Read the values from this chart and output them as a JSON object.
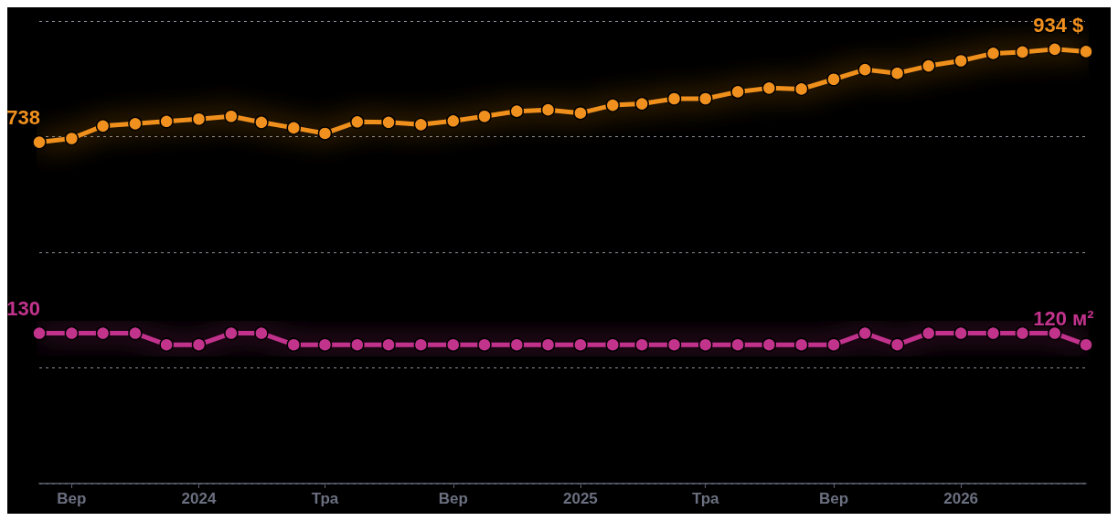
{
  "chart_data": {
    "type": "line",
    "x": [
      "2023-08",
      "2023-09",
      "2023-10",
      "2023-11",
      "2023-12",
      "2024-01",
      "2024-02",
      "2024-03",
      "2024-04",
      "2024-05",
      "2024-06",
      "2024-07",
      "2024-08",
      "2024-09",
      "2024-10",
      "2024-11",
      "2024-12",
      "2025-01",
      "2025-02",
      "2025-03",
      "2025-04",
      "2025-05",
      "2025-06",
      "2025-07",
      "2025-08",
      "2025-09",
      "2025-10",
      "2025-11",
      "2025-12",
      "2026-01",
      "2026-02",
      "2026-03",
      "2026-04",
      "2026-05"
    ],
    "series": [
      {
        "color": "#f0901e",
        "values": [
          738,
          746,
          773,
          778,
          783,
          788,
          794,
          781,
          769,
          757,
          782,
          781,
          776,
          784,
          794,
          805,
          808,
          801,
          818,
          821,
          832,
          832,
          847,
          855,
          853,
          874,
          895,
          887,
          903,
          914,
          930,
          933,
          939,
          934
        ],
        "value_labels": [
          "738",
          null,
          null,
          null,
          null,
          null,
          null,
          null,
          null,
          null,
          null,
          null,
          null,
          null,
          null,
          null,
          null,
          null,
          null,
          null,
          null,
          null,
          null,
          null,
          null,
          null,
          null,
          null,
          null,
          null,
          null,
          null,
          null,
          "934 $"
        ]
      },
      {
        "color": "#c2338c",
        "axis": "y2",
        "values": [
          130,
          130,
          130,
          130,
          120,
          120,
          130,
          130,
          120,
          120,
          120,
          120,
          120,
          120,
          120,
          120,
          120,
          120,
          120,
          120,
          120,
          120,
          120,
          120,
          120,
          120,
          130,
          120,
          130,
          130,
          130,
          130,
          130,
          120
        ],
        "value_labels": [
          "130",
          null,
          null,
          null,
          null,
          null,
          null,
          null,
          null,
          null,
          null,
          null,
          null,
          null,
          null,
          null,
          null,
          null,
          null,
          null,
          null,
          null,
          null,
          null,
          null,
          null,
          null,
          null,
          null,
          null,
          null,
          null,
          null,
          "120 м²"
        ]
      }
    ],
    "xlim": [
      "2023-08",
      "2026-05"
    ],
    "xticks": [
      {
        "value": "2023-09",
        "label": "Вер"
      },
      {
        "value": "2024-01",
        "label": "2024"
      },
      {
        "value": "2024-05",
        "label": "Тра"
      },
      {
        "value": "2024-09",
        "label": "Вер"
      },
      {
        "value": "2025-01",
        "label": "2025"
      },
      {
        "value": "2025-05",
        "label": "Тра"
      },
      {
        "value": "2025-09",
        "label": "Вер"
      },
      {
        "value": "2026-01",
        "label": "2026"
      }
    ],
    "ylim": [
      0,
      1000
    ],
    "yticks": [
      {
        "value": 0,
        "label": null
      },
      {
        "value": 250,
        "label": null
      },
      {
        "value": 500,
        "label": null
      },
      {
        "value": 750,
        "label": null
      },
      {
        "value": 1000,
        "label": null
      }
    ],
    "y2lim": [
      0,
      400
    ],
    "tick_labels": "x",
    "grid": "y",
    "marker": "circle",
    "line_style": "solid"
  }
}
